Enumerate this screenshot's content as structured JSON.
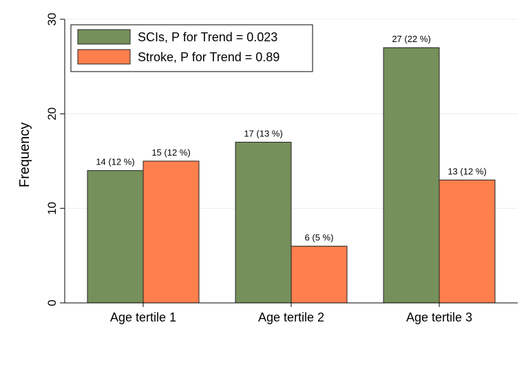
{
  "chart_data": {
    "type": "bar",
    "ylabel": "Frequency",
    "xlabel": "",
    "ylim": [
      0,
      30
    ],
    "yticks": [
      0,
      10,
      20,
      30
    ],
    "grid": "horizontal",
    "legend_position": "top-left",
    "categories": [
      "Age tertile 1",
      "Age tertile 2",
      "Age tertile 3"
    ],
    "series": [
      {
        "name": "SCIs, P for Trend = 0.023",
        "color": "#75905a",
        "values": [
          14,
          17,
          27
        ],
        "labels": [
          "14 (12 %)",
          "17 (13 %)",
          "27 (22 %)"
        ]
      },
      {
        "name": "Stroke, P for Trend = 0.89",
        "color": "#ff7f4d",
        "values": [
          15,
          6,
          13
        ],
        "labels": [
          "15 (12 %)",
          "6 (5 %)",
          "13 (12 %)"
        ]
      }
    ]
  }
}
